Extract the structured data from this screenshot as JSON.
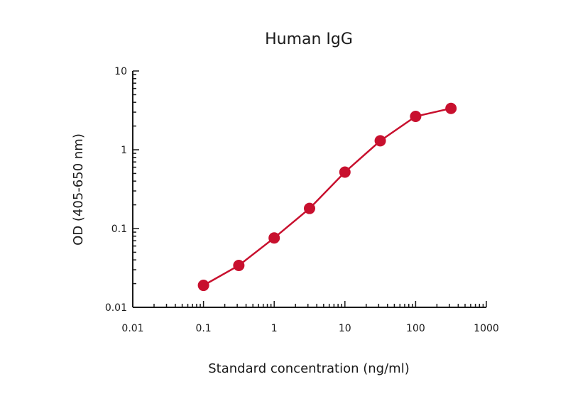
{
  "chart_data": {
    "type": "line",
    "title": "Human IgG",
    "xlabel": "Standard concentration (ng/ml)",
    "ylabel": "OD (405-650 nm)",
    "x_scale": "log",
    "y_scale": "log",
    "xlim": [
      0.01,
      1000
    ],
    "ylim": [
      0.01,
      10
    ],
    "x_ticks": [
      "0.01",
      "0.1",
      "1",
      "10",
      "100",
      "1000"
    ],
    "y_ticks": [
      "0.01",
      "0.1",
      "1",
      "10"
    ],
    "grid": false,
    "color": "#c8102e",
    "series": [
      {
        "x": [
          0.1,
          0.316,
          1,
          3.16,
          10,
          31.6,
          100,
          316
        ],
        "y": [
          0.019,
          0.034,
          0.076,
          0.18,
          0.52,
          1.3,
          2.65,
          3.35
        ]
      }
    ]
  }
}
